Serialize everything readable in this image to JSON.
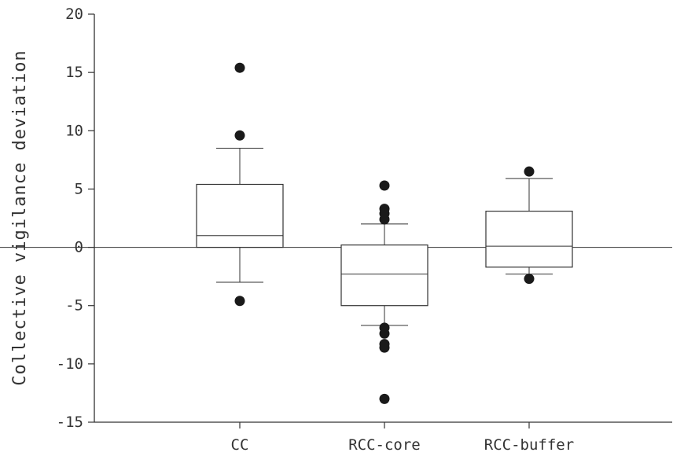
{
  "chart_data": {
    "type": "box",
    "title": "",
    "xlabel": "",
    "ylabel": "Collective vigilance deviation",
    "ylim": [
      -15,
      20
    ],
    "yticks": [
      20,
      15,
      10,
      5,
      0,
      -5,
      -10,
      -15
    ],
    "reference_line": 0,
    "categories": [
      "CC",
      "RCC-core",
      "RCC-buffer"
    ],
    "boxes": [
      {
        "category": "CC",
        "whisker_low": -3.0,
        "q1": 0.0,
        "median": 1.0,
        "q3": 5.4,
        "whisker_high": 8.5,
        "outliers": [
          15.4,
          9.6,
          -4.6
        ]
      },
      {
        "category": "RCC-core",
        "whisker_low": -6.7,
        "q1": -5.0,
        "median": -2.3,
        "q3": 0.2,
        "whisker_high": 2.0,
        "outliers": [
          5.3,
          3.3,
          2.9,
          2.4,
          -6.9,
          -7.4,
          -8.3,
          -8.6,
          -13.0
        ]
      },
      {
        "category": "RCC-buffer",
        "whisker_low": -2.3,
        "q1": -1.7,
        "median": 0.1,
        "q3": 3.1,
        "whisker_high": 5.9,
        "outliers": [
          6.5,
          -2.7
        ]
      }
    ],
    "grid": false,
    "legend": "none",
    "colors": {
      "box_stroke": "#333333",
      "outlier": "#1a1a1a",
      "axis": "#333333"
    }
  }
}
